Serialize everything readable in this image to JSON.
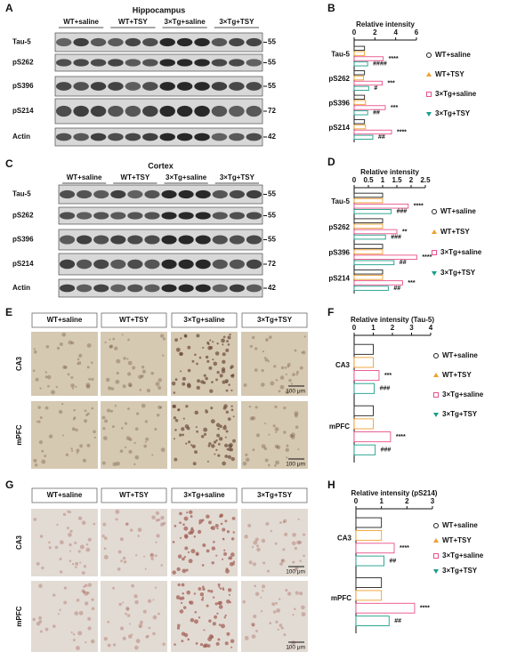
{
  "panels": [
    "A",
    "B",
    "C",
    "D",
    "E",
    "F",
    "G",
    "H"
  ],
  "blots": [
    {
      "title": "Hippocampus",
      "groups": [
        "WT+saline",
        "WT+TSY",
        "3×Tg+saline",
        "3×Tg+TSY"
      ],
      "rows": [
        {
          "label": "Tau-5",
          "mw": 55
        },
        {
          "label": "pS262",
          "mw": 55
        },
        {
          "label": "pS396",
          "mw": 55
        },
        {
          "label": "pS214",
          "mw": 72
        },
        {
          "label": "Actin",
          "mw": 42
        }
      ]
    },
    {
      "title": "Cortex",
      "groups": [
        "WT+saline",
        "WT+TSY",
        "3×Tg+saline",
        "3×Tg+TSY"
      ],
      "rows": [
        {
          "label": "Tau-5",
          "mw": 55
        },
        {
          "label": "pS262",
          "mw": 55
        },
        {
          "label": "pS396",
          "mw": 55
        },
        {
          "label": "pS214",
          "mw": 72
        },
        {
          "label": "Actin",
          "mw": 42
        }
      ]
    }
  ],
  "histology": [
    {
      "groups": [
        "WT+saline",
        "WT+TSY",
        "3×Tg+saline",
        "3×Tg+TSY"
      ],
      "regions": [
        "CA3",
        "mPFC"
      ],
      "scale_bar": "100 μm"
    },
    {
      "groups": [
        "WT+saline",
        "WT+TSY",
        "3×Tg+saline",
        "3×Tg+TSY"
      ],
      "regions": [
        "CA3",
        "mPFC"
      ],
      "scale_bar": "100 μm"
    }
  ],
  "chart_data": [
    {
      "type": "bar",
      "orientation": "horizontal",
      "title": "Relative intensity",
      "categories": [
        "Tau-5",
        "pS262",
        "pS396",
        "pS214"
      ],
      "xlim": [
        0,
        6
      ],
      "xticks": [
        0,
        2,
        4,
        6
      ],
      "series": [
        {
          "name": "WT+saline",
          "color": "#222222",
          "values": [
            1,
            1,
            1,
            1
          ]
        },
        {
          "name": "WT+TSY",
          "color": "#f0a030",
          "values": [
            1,
            0.9,
            1.1,
            1.1
          ]
        },
        {
          "name": "3×Tg+saline",
          "color": "#e8508a",
          "values": [
            2.8,
            2.7,
            3.0,
            3.6
          ],
          "annotations": [
            "****",
            "***",
            "***",
            "****"
          ]
        },
        {
          "name": "3×Tg+TSY",
          "color": "#1a9e8a",
          "values": [
            1.3,
            1.4,
            1.3,
            1.8
          ],
          "annotations": [
            "####",
            "#",
            "##",
            "##"
          ]
        }
      ]
    },
    {
      "type": "bar",
      "orientation": "horizontal",
      "title": "Relative intensity",
      "categories": [
        "Tau-5",
        "pS262",
        "pS396",
        "pS214"
      ],
      "xlim": [
        0,
        2.5
      ],
      "xticks": [
        0,
        0.5,
        1,
        1.5,
        2,
        2.5
      ],
      "series": [
        {
          "name": "WT+saline",
          "color": "#222222",
          "values": [
            1,
            1,
            1,
            1
          ]
        },
        {
          "name": "WT+TSY",
          "color": "#f0a030",
          "values": [
            1,
            1,
            1,
            1
          ]
        },
        {
          "name": "3×Tg+saline",
          "color": "#e8508a",
          "values": [
            1.9,
            1.5,
            2.2,
            1.7
          ],
          "annotations": [
            "****",
            "**",
            "****",
            "***"
          ]
        },
        {
          "name": "3×Tg+TSY",
          "color": "#1a9e8a",
          "values": [
            1.3,
            1.1,
            1.4,
            1.2
          ],
          "annotations": [
            "###",
            "###",
            "##",
            "##"
          ]
        }
      ]
    },
    {
      "type": "bar",
      "orientation": "horizontal",
      "title": "Relative intensity (Tau-5)",
      "categories": [
        "CA3",
        "mPFC"
      ],
      "xlim": [
        0,
        4
      ],
      "xticks": [
        0,
        1,
        2,
        3,
        4
      ],
      "series": [
        {
          "name": "WT+saline",
          "color": "#222222",
          "values": [
            1,
            1
          ]
        },
        {
          "name": "WT+TSY",
          "color": "#f0a030",
          "values": [
            1,
            1
          ]
        },
        {
          "name": "3×Tg+saline",
          "color": "#e8508a",
          "values": [
            1.3,
            1.9
          ],
          "annotations": [
            "***",
            "****"
          ]
        },
        {
          "name": "3×Tg+TSY",
          "color": "#1a9e8a",
          "values": [
            1.05,
            1.1
          ],
          "annotations": [
            "###",
            "###"
          ]
        }
      ]
    },
    {
      "type": "bar",
      "orientation": "horizontal",
      "title": "Relative intensity (pS214)",
      "categories": [
        "CA3",
        "mPFC"
      ],
      "xlim": [
        0,
        3
      ],
      "xticks": [
        0,
        1,
        2,
        3
      ],
      "series": [
        {
          "name": "WT+saline",
          "color": "#222222",
          "values": [
            1,
            1
          ]
        },
        {
          "name": "WT+TSY",
          "color": "#f0a030",
          "values": [
            1,
            1
          ]
        },
        {
          "name": "3×Tg+saline",
          "color": "#e8508a",
          "values": [
            1.5,
            2.3
          ],
          "annotations": [
            "****",
            "****"
          ]
        },
        {
          "name": "3×Tg+TSY",
          "color": "#1a9e8a",
          "values": [
            1.1,
            1.3
          ],
          "annotations": [
            "##",
            "##"
          ]
        }
      ]
    }
  ]
}
